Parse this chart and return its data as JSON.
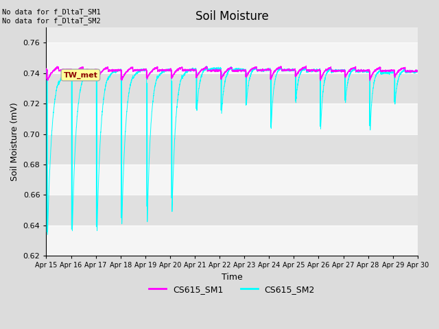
{
  "title": "Soil Moisture",
  "xlabel": "Time",
  "ylabel": "Soil Moisture (mV)",
  "ylim": [
    0.62,
    0.77
  ],
  "yticks": [
    0.62,
    0.64,
    0.66,
    0.68,
    0.7,
    0.72,
    0.74,
    0.76
  ],
  "no_data_text1": "No data for f_DltaT_SM1",
  "no_data_text2": "No data for f_DltaT_SM2",
  "tw_met_label": "TW_met",
  "legend_entries": [
    "CS615_SM1",
    "CS615_SM2"
  ],
  "line_colors": [
    "#FF00FF",
    "#00FFFF"
  ],
  "background_color": "#DCDCDC",
  "plot_bg_color": "#EBEBEB",
  "band_color_light": "#F5F5F5",
  "band_color_dark": "#E0E0E0",
  "x_tick_labels": [
    "Apr 15",
    "Apr 16",
    "Apr 17",
    "Apr 18",
    "Apr 19",
    "Apr 20",
    "Apr 21",
    "Apr 22",
    "Apr 23",
    "Apr 24",
    "Apr 25",
    "Apr 26",
    "Apr 27",
    "Apr 28",
    "Apr 29",
    "Apr 30"
  ]
}
